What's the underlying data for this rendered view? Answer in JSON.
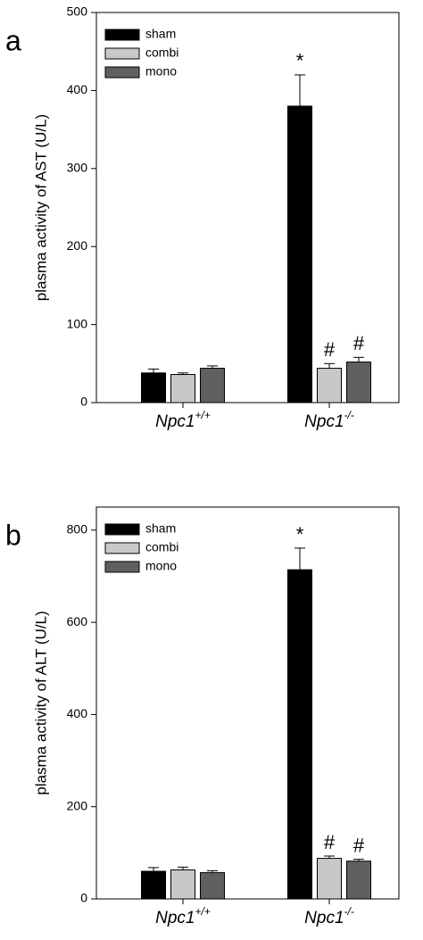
{
  "chart_data": [
    {
      "type": "bar",
      "panel_label": "a",
      "y_label": "plasma activity of AST (U/L)",
      "categories": [
        "Npc1",
        "Npc1"
      ],
      "category_superscripts": [
        "+/+",
        "-/-"
      ],
      "ylim": [
        0,
        500
      ],
      "yticks": [
        0,
        100,
        200,
        300,
        400,
        500
      ],
      "series": [
        {
          "name": "sham",
          "color": "#000000",
          "values": [
            38,
            380
          ],
          "errors": [
            5,
            40
          ],
          "value_annotations": [
            null,
            "*"
          ]
        },
        {
          "name": "combi",
          "color": "#c8c8c8",
          "values": [
            36,
            44
          ],
          "errors": [
            2,
            6
          ],
          "value_annotations": [
            null,
            "#"
          ]
        },
        {
          "name": "mono",
          "color": "#606060",
          "values": [
            44,
            52
          ],
          "errors": [
            3,
            6
          ],
          "value_annotations": [
            null,
            "#"
          ]
        }
      ]
    },
    {
      "type": "bar",
      "panel_label": "b",
      "y_label": "plasma activity of ALT (U/L)",
      "categories": [
        "Npc1",
        "Npc1"
      ],
      "category_superscripts": [
        "+/+",
        "-/-"
      ],
      "ylim": [
        0,
        850
      ],
      "yticks": [
        0,
        200,
        400,
        600,
        800
      ],
      "series": [
        {
          "name": "sham",
          "color": "#000000",
          "values": [
            60,
            714
          ],
          "errors": [
            8,
            47
          ],
          "value_annotations": [
            null,
            "*"
          ]
        },
        {
          "name": "combi",
          "color": "#c8c8c8",
          "values": [
            63,
            88
          ],
          "errors": [
            6,
            5
          ],
          "value_annotations": [
            null,
            "#"
          ]
        },
        {
          "name": "mono",
          "color": "#606060",
          "values": [
            57,
            82
          ],
          "errors": [
            4,
            4
          ],
          "value_annotations": [
            null,
            "#"
          ]
        }
      ]
    }
  ]
}
